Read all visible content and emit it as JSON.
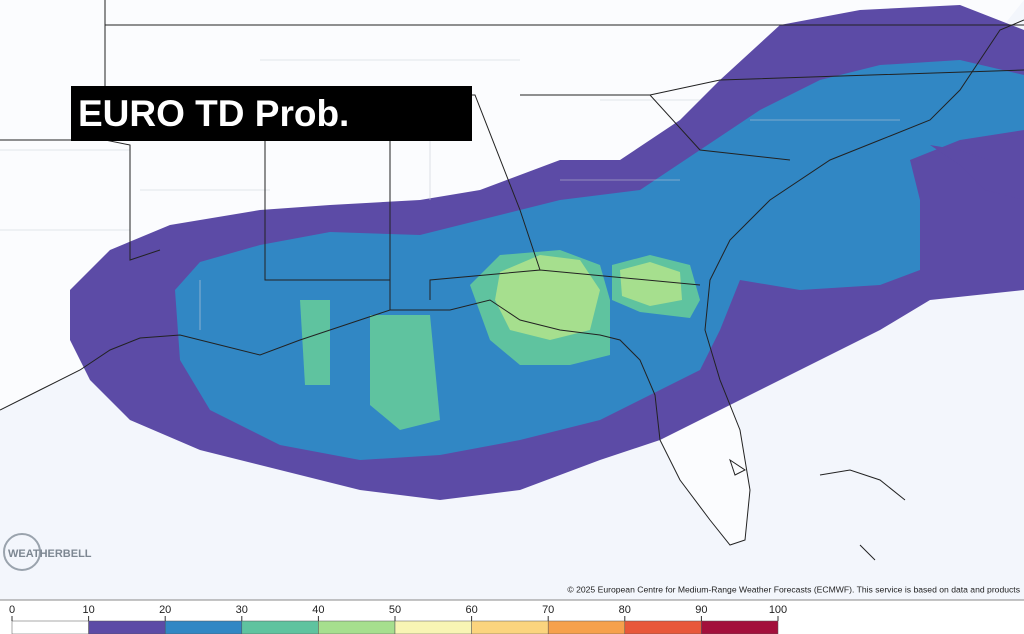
{
  "title": "EURO TD Prob.",
  "credit": "© 2025 European Centre for Medium-Range Weather Forecasts (ECMWF). This service is based on data and products",
  "logo": "WEATHERBELL",
  "colorbar": {
    "ticks": [
      0,
      10,
      20,
      30,
      40,
      50,
      60,
      70,
      80,
      90,
      100
    ],
    "colors": [
      "#ffffff",
      "#5c4ba6",
      "#3187c4",
      "#5fc39f",
      "#a6df8e",
      "#f8f5b4",
      "#fbd47e",
      "#f6a14c",
      "#e8583a",
      "#a3103c"
    ]
  }
}
